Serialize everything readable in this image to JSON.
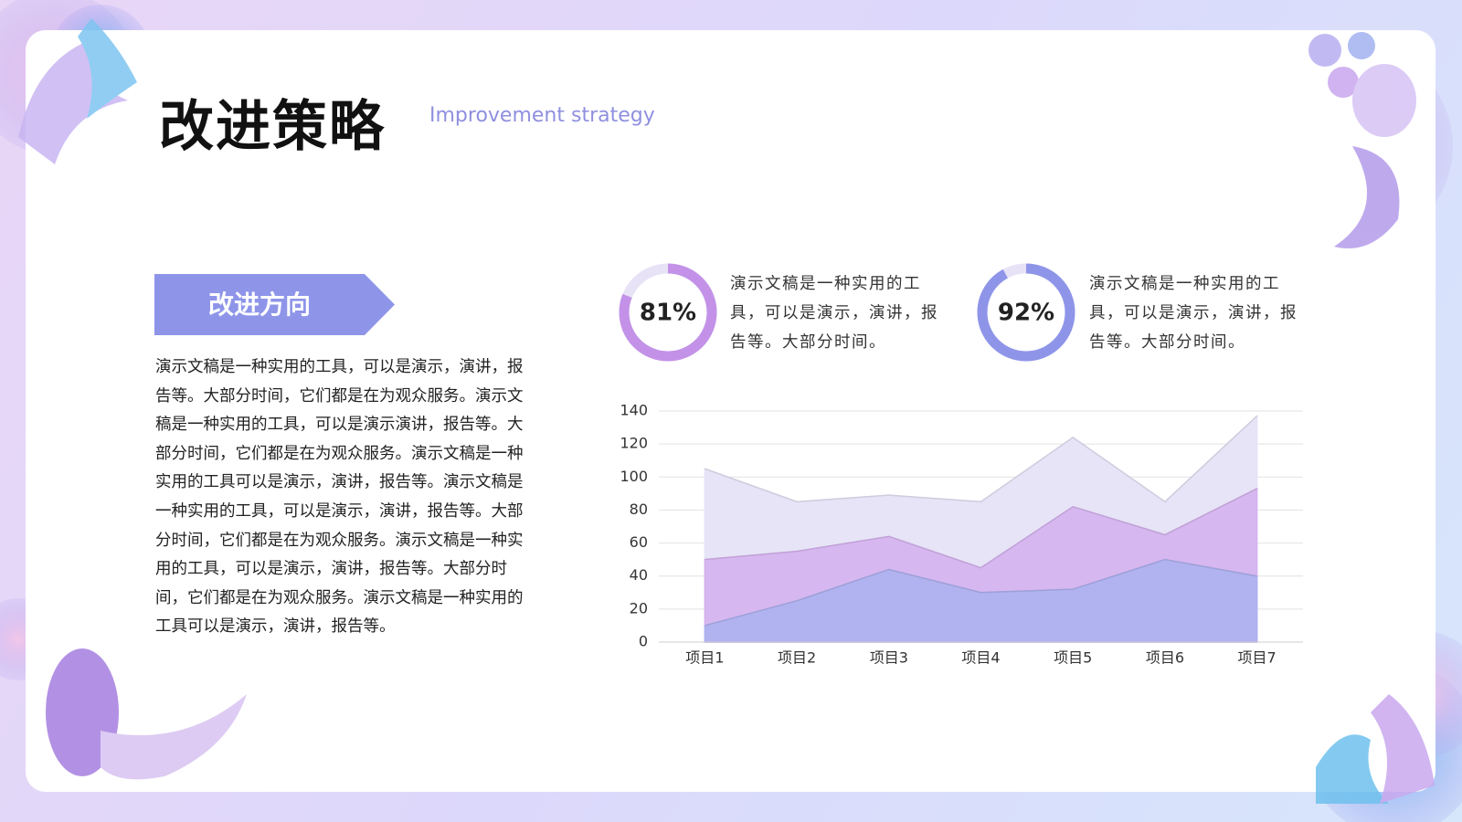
{
  "header": {
    "title": "改进策略",
    "subtitle": "Improvement strategy"
  },
  "section": {
    "heading": "改进方向",
    "body": "演示文稿是一种实用的工具，可以是演示，演讲，报告等。大部分时间，它们都是在为观众服务。演示文稿是一种实用的工具，可以是演示演讲，报告等。大部分时间，它们都是在为观众服务。演示文稿是一种实用的工具可以是演示，演讲，报告等。演示文稿是一种实用的工具，可以是演示，演讲，报告等。大部分时间，它们都是在为观众服务。演示文稿是一种实用的工具，可以是演示，演讲，报告等。大部分时间，它们都是在为观众服务。演示文稿是一种实用的工具可以是演示，演讲，报告等。"
  },
  "stats": [
    {
      "value": 81,
      "label": "81%",
      "color": "#c392e8",
      "text": "演示文稿是一种实用的工具，可以是演示，演讲，报告等。大部分时间。"
    },
    {
      "value": 92,
      "label": "92%",
      "color": "#8e95e9",
      "text": "演示文稿是一种实用的工具，可以是演示，演讲，报告等。大部分时间。"
    }
  ],
  "chart_data": {
    "type": "area",
    "categories": [
      "项目1",
      "项目2",
      "项目3",
      "项目4",
      "项目5",
      "项目6",
      "项目7"
    ],
    "series": [
      {
        "color": "#e5e3f6",
        "values": [
          105,
          85,
          89,
          85,
          124,
          85,
          137
        ]
      },
      {
        "color": "#d6b4ef",
        "values": [
          50,
          55,
          64,
          45,
          82,
          65,
          93
        ]
      },
      {
        "color": "#afb2ef",
        "values": [
          10,
          25,
          44,
          30,
          32,
          50,
          40
        ]
      }
    ],
    "ylim": [
      0,
      140
    ],
    "yticks": [
      0,
      20,
      40,
      60,
      80,
      100,
      120,
      140
    ],
    "grid": true
  }
}
